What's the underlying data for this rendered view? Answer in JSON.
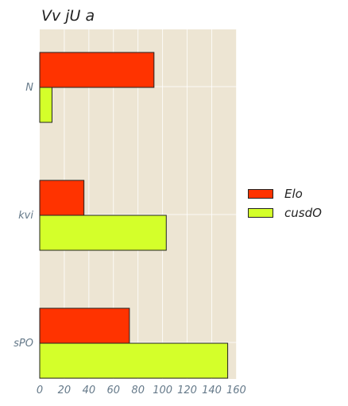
{
  "chart_data": {
    "type": "bar",
    "orientation": "horizontal",
    "title": "Vv jU a",
    "categories": [
      "N",
      "kvi",
      "sPO"
    ],
    "series": [
      {
        "name": "Elo",
        "color": "#ff3300",
        "values": [
          93,
          36,
          73
        ]
      },
      {
        "name": "cusdO",
        "color": "#d4ff2a",
        "values": [
          10,
          103,
          153
        ]
      }
    ],
    "xlim": [
      0,
      160
    ],
    "xticks": [
      0,
      20,
      40,
      60,
      80,
      100,
      120,
      140,
      160
    ],
    "xlabel": "",
    "ylabel": "",
    "grid": true,
    "legend": "right",
    "plot_background": "#ede5d3"
  }
}
